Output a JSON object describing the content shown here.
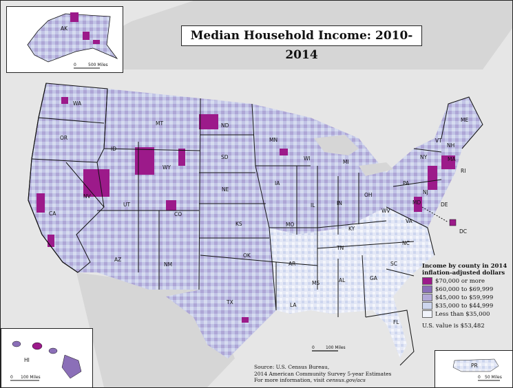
{
  "title": "Median Household Income: 2010-2014",
  "legend": {
    "title_line1": "Income by county in 2014",
    "title_line2": "inflation-adjusted dollars",
    "items": [
      {
        "label": "$70,000 or more",
        "color": "#9c1a8a"
      },
      {
        "label": "$60,000 to $69,999",
        "color": "#8b6fb8"
      },
      {
        "label": "$45,000 to $59,999",
        "color": "#b3aad8"
      },
      {
        "label": "$35,000 to $44,999",
        "color": "#cdd6ee"
      },
      {
        "label": "Less than $35,000",
        "color": "#f1f4fb"
      }
    ],
    "us_value": "U.S. value is $53,482"
  },
  "source": {
    "line1": "Source: U.S. Census Bureau,",
    "line2": "2014 American Community Survey 5-year Estimates",
    "line3_prefix": "For more information, visit ",
    "line3_link": "census.gov/acs"
  },
  "scales": {
    "alaska": [
      "0",
      "500 Miles"
    ],
    "hawaii": [
      "0",
      "100 Miles"
    ],
    "conus": [
      "0",
      "100 Miles"
    ],
    "puerto_rico": [
      "0",
      "50 Miles"
    ]
  },
  "insets": {
    "alaska_label": "AK",
    "hawaii_label": "HI",
    "puerto_rico_label": "PR"
  },
  "state_labels": [
    {
      "id": "WA",
      "text": "WA"
    },
    {
      "id": "OR",
      "text": "OR"
    },
    {
      "id": "CA",
      "text": "CA"
    },
    {
      "id": "ID",
      "text": "ID"
    },
    {
      "id": "NV",
      "text": "NV"
    },
    {
      "id": "MT",
      "text": "MT"
    },
    {
      "id": "WY",
      "text": "WY"
    },
    {
      "id": "UT",
      "text": "UT"
    },
    {
      "id": "AZ",
      "text": "AZ"
    },
    {
      "id": "CO",
      "text": "CO"
    },
    {
      "id": "NM",
      "text": "NM"
    },
    {
      "id": "ND",
      "text": "ND"
    },
    {
      "id": "SD",
      "text": "SD"
    },
    {
      "id": "NE",
      "text": "NE"
    },
    {
      "id": "KS",
      "text": "KS"
    },
    {
      "id": "OK",
      "text": "OK"
    },
    {
      "id": "TX",
      "text": "TX"
    },
    {
      "id": "MN",
      "text": "MN"
    },
    {
      "id": "IA",
      "text": "IA"
    },
    {
      "id": "MO",
      "text": "MO"
    },
    {
      "id": "AR",
      "text": "AR"
    },
    {
      "id": "LA",
      "text": "LA"
    },
    {
      "id": "WI",
      "text": "WI"
    },
    {
      "id": "IL",
      "text": "IL"
    },
    {
      "id": "MI",
      "text": "MI"
    },
    {
      "id": "IN",
      "text": "IN"
    },
    {
      "id": "OH",
      "text": "OH"
    },
    {
      "id": "KY",
      "text": "KY"
    },
    {
      "id": "TN",
      "text": "TN"
    },
    {
      "id": "MS",
      "text": "MS"
    },
    {
      "id": "AL",
      "text": "AL"
    },
    {
      "id": "GA",
      "text": "GA"
    },
    {
      "id": "FL",
      "text": "FL"
    },
    {
      "id": "SC",
      "text": "SC"
    },
    {
      "id": "NC",
      "text": "NC"
    },
    {
      "id": "VA",
      "text": "VA"
    },
    {
      "id": "WV",
      "text": "WV"
    },
    {
      "id": "PA",
      "text": "PA"
    },
    {
      "id": "NY",
      "text": "NY"
    },
    {
      "id": "VT",
      "text": "VT"
    },
    {
      "id": "NH",
      "text": "NH"
    },
    {
      "id": "ME",
      "text": "ME"
    },
    {
      "id": "MA",
      "text": "MA"
    },
    {
      "id": "RI",
      "text": "RI"
    },
    {
      "id": "NJ",
      "text": "NJ"
    },
    {
      "id": "DE",
      "text": "DE"
    },
    {
      "id": "MD",
      "text": "MD"
    },
    {
      "id": "DC",
      "text": "DC"
    }
  ]
}
